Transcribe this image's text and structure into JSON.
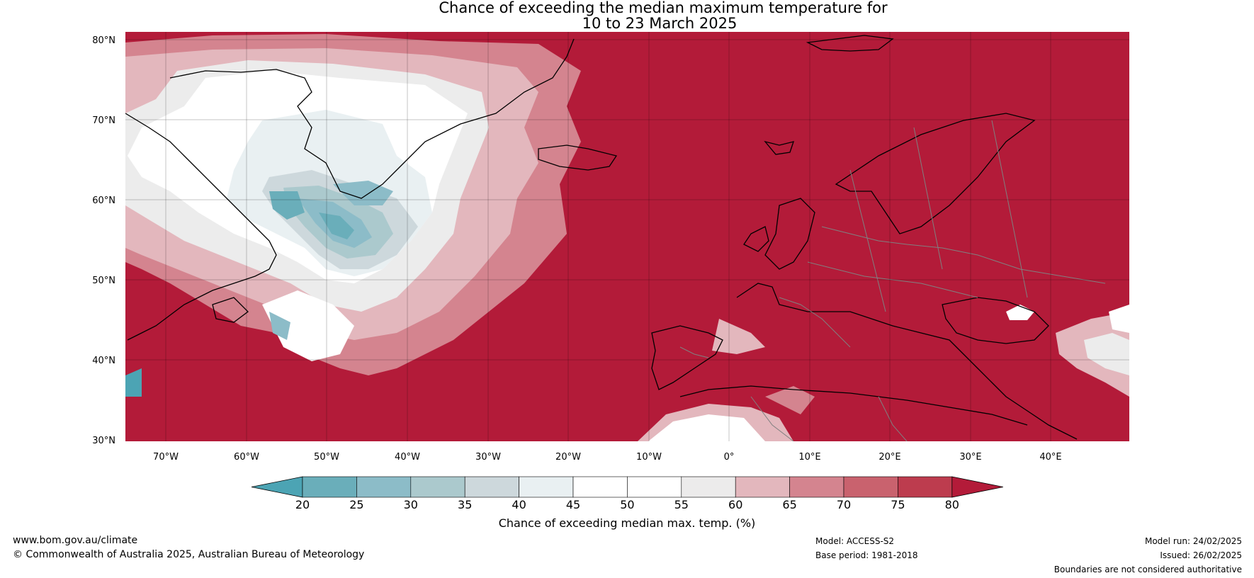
{
  "title": {
    "line1": "Chance of exceeding the median maximum temperature for",
    "line2": "10 to 23 March 2025"
  },
  "map": {
    "lat_labels": [
      "80°N",
      "70°N",
      "60°N",
      "50°N",
      "40°N",
      "30°N"
    ],
    "lon_labels": [
      "70°W",
      "60°W",
      "50°W",
      "40°W",
      "30°W",
      "20°W",
      "10°W",
      "0°",
      "10°E",
      "20°E",
      "30°E",
      "40°E"
    ],
    "colors": {
      "ocean_default": "#b31b39",
      "coast": "#000000",
      "border": "#808080"
    }
  },
  "colorbar": {
    "ticks": [
      "20",
      "25",
      "30",
      "35",
      "40",
      "45",
      "50",
      "55",
      "60",
      "65",
      "70",
      "75",
      "80"
    ],
    "colors": [
      "#4ca4b4",
      "#6aaeba",
      "#8cbcc8",
      "#abc9cd",
      "#cdd8dc",
      "#e9f0f2",
      "#ffffff",
      "#ffffff",
      "#ecebeb",
      "#e3b7bd",
      "#d4848f",
      "#c9626e",
      "#bd3c4e",
      "#b31b39"
    ],
    "label": "Chance of exceeding median max. temp. (%)"
  },
  "footer": {
    "website": "www.bom.gov.au/climate",
    "copyright": "© Commonwealth of Australia 2025, Australian Bureau of Meteorology",
    "model": "Model: ACCESS-S2",
    "base_period": "Base period: 1981-2018",
    "model_run": "Model run: 24/02/2025",
    "issued": "Issued: 26/02/2025",
    "disclaimer": "Boundaries are not considered authoritative"
  }
}
